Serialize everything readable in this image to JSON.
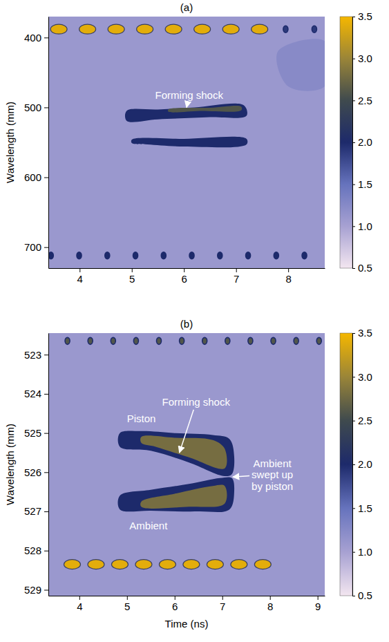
{
  "chart_data": [
    {
      "type": "heatmap",
      "title": "(a)",
      "y_label": "Wavelength (mm)",
      "xlim": [
        3.4,
        8.7
      ],
      "xticks": [
        4,
        5,
        6,
        7,
        8
      ],
      "ylim": [
        730,
        370
      ],
      "yticks": [
        400,
        500,
        600,
        700
      ],
      "colorbar": {
        "range": [
          0.5,
          3.5
        ],
        "ticks": [
          0.5,
          {
            "value": 1,
            "label": "1.0"
          },
          1.5,
          {
            "value": 2,
            "label": "2.0"
          },
          2.5,
          {
            "value": 3,
            "label": "3.0"
          },
          3.5
        ]
      },
      "background": 1.1,
      "markers": [
        {
          "marker": "ellipse",
          "wavelength": 388,
          "intensity": 3.4,
          "times": [
            3.6,
            4.15,
            4.7,
            5.25,
            5.8,
            6.35,
            6.9,
            7.45
          ]
        },
        {
          "marker": "dot",
          "wavelength": 388,
          "intensity": 1.9,
          "times": [
            7.95,
            8.5
          ]
        },
        {
          "marker": "dot",
          "wavelength": 712,
          "intensity": 2.0,
          "times": [
            3.45,
            3.99,
            4.53,
            5.07,
            5.61,
            6.15,
            6.69,
            7.23,
            7.77,
            8.31
          ]
        }
      ],
      "regions": [
        {
          "intensity": 1.3,
          "time": [
            7.8,
            8.7,
            8.7,
            8.0
          ],
          "wavelength": [
            420,
            405,
            470,
            470
          ]
        },
        {
          "intensity": 2.0,
          "time": [
            4.9,
            5.5,
            6.2,
            7.15,
            7.2,
            6.5,
            5.5,
            4.9
          ],
          "wavelength": [
            505,
            503,
            500,
            497,
            512,
            514,
            517,
            519
          ]
        },
        {
          "intensity": 2.6,
          "time": [
            5.7,
            6.5,
            7.1,
            7.1,
            6.3,
            5.7
          ],
          "wavelength": [
            503,
            500.5,
            499,
            504,
            505,
            506
          ]
        },
        {
          "intensity": 2.0,
          "time": [
            5.0,
            6.0,
            7.2,
            7.2,
            6.0,
            5.3,
            5.0
          ],
          "wavelength": [
            546,
            545,
            545,
            553,
            556,
            553,
            551
          ]
        }
      ],
      "annotations": [
        {
          "text": "Forming shock",
          "position": [
            6.1,
            482
          ],
          "point": [
            6.05,
            500
          ]
        }
      ]
    },
    {
      "type": "heatmap",
      "title": "(b)",
      "x_label": "Time (ns)",
      "y_label": "Wavelength (mm)",
      "xlim": [
        3.35,
        9.15
      ],
      "xticks": [
        4,
        5,
        6,
        7,
        8,
        9
      ],
      "ylim": [
        529.15,
        522.45
      ],
      "yticks": [
        523,
        524,
        525,
        526,
        527,
        528,
        529
      ],
      "colorbar": {
        "range": [
          0.5,
          3.5
        ],
        "ticks": [
          0.5,
          {
            "value": 1,
            "label": "1.0"
          },
          1.5,
          {
            "value": 2,
            "label": "2.0"
          },
          2.5,
          {
            "value": 3,
            "label": "3.0"
          },
          3.5
        ]
      },
      "background": 1.1,
      "markers": [
        {
          "marker": "dot",
          "wavelength": 522.65,
          "intensity": 2.6,
          "times": [
            3.75,
            4.23,
            4.71,
            5.19,
            5.67,
            6.15,
            6.63,
            7.11,
            7.59,
            8.07,
            8.55,
            9.03
          ]
        },
        {
          "marker": "ellipse",
          "wavelength": 528.35,
          "intensity": 3.4,
          "times": [
            3.85,
            4.35,
            4.85,
            5.35,
            5.85,
            6.35,
            6.85,
            7.35,
            7.85
          ]
        }
      ],
      "regions": [
        {
          "intensity": 2.0,
          "time": [
            4.85,
            5.3,
            6.0,
            6.8,
            7.15,
            7.25,
            7.2,
            7.05,
            6.3,
            5.5,
            4.85
          ],
          "wavelength": [
            525.0,
            524.95,
            525.0,
            525.05,
            525.15,
            525.6,
            526.05,
            526.1,
            525.75,
            525.45,
            525.35
          ]
        },
        {
          "intensity": 2.8,
          "time": [
            5.3,
            6.0,
            6.8,
            7.05,
            7.05,
            6.3,
            5.6,
            5.3
          ],
          "wavelength": [
            525.1,
            525.12,
            525.18,
            525.4,
            525.9,
            525.62,
            525.35,
            525.25
          ]
        },
        {
          "intensity": 2.0,
          "time": [
            4.85,
            5.5,
            6.3,
            6.95,
            7.2,
            7.25,
            7.15,
            6.5,
            5.5,
            4.85
          ],
          "wavelength": [
            526.6,
            526.45,
            526.3,
            526.15,
            526.15,
            526.5,
            526.95,
            527.0,
            526.98,
            526.95
          ]
        },
        {
          "intensity": 2.8,
          "time": [
            5.3,
            6.0,
            6.8,
            7.05,
            7.05,
            6.3,
            5.3
          ],
          "wavelength": [
            526.75,
            526.55,
            526.35,
            526.35,
            526.8,
            526.88,
            526.88
          ]
        }
      ],
      "annotations": [
        {
          "text": "Forming shock",
          "position": [
            6.45,
            524.2
          ],
          "point": [
            6.1,
            525.5
          ]
        },
        {
          "text": "Piston",
          "position": [
            5.3,
            524.62
          ]
        },
        {
          "text": "Ambient",
          "position": [
            5.45,
            527.35
          ]
        },
        {
          "text": [
            "Ambient",
            "swept up",
            "by piston"
          ],
          "position": [
            8.05,
            526.05
          ],
          "point": [
            7.22,
            526.12
          ]
        }
      ]
    }
  ]
}
